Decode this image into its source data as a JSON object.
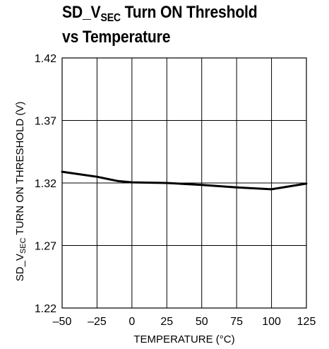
{
  "chart_data": {
    "type": "line",
    "title_main": "SD_V",
    "title_sub": "SEC",
    "title_rest": " Turn ON Threshold",
    "title_line2": "vs Temperature",
    "xlabel": "TEMPERATURE (°C)",
    "ylabel_main": "SD_V",
    "ylabel_sub": "SEC",
    "ylabel_rest": " TURN ON THRESHOLD (V)",
    "xlim": [
      -50,
      125
    ],
    "ylim": [
      1.22,
      1.42
    ],
    "xticks": [
      -50,
      -25,
      0,
      25,
      50,
      75,
      100,
      125
    ],
    "xtick_labels": [
      "–50",
      "–25",
      "0",
      "25",
      "50",
      "75",
      "100",
      "125"
    ],
    "yticks": [
      1.22,
      1.27,
      1.32,
      1.37,
      1.42
    ],
    "ytick_labels": [
      "1.22",
      "1.27",
      "1.32",
      "1.37",
      "1.42"
    ],
    "grid": true,
    "series": [
      {
        "x": [
          -50,
          -25,
          -10,
          0,
          25,
          50,
          75,
          100,
          125
        ],
        "y": [
          1.329,
          1.325,
          1.3215,
          1.3205,
          1.32,
          1.3185,
          1.3165,
          1.315,
          1.3195
        ]
      }
    ]
  }
}
